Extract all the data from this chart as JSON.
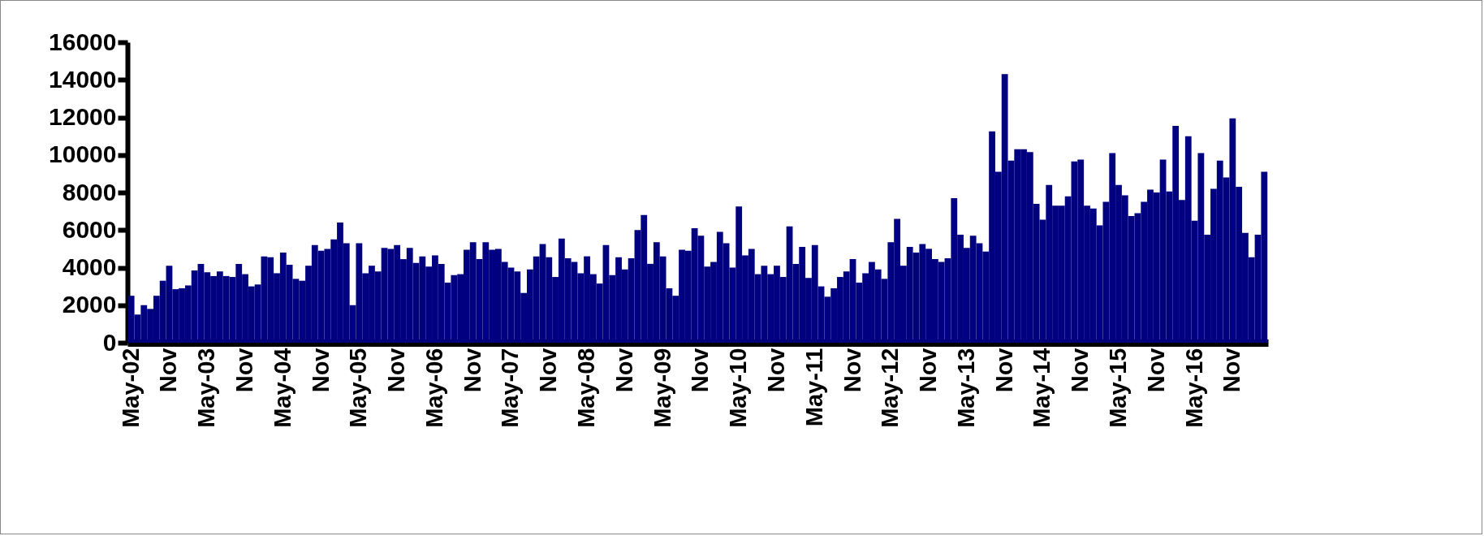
{
  "chart_data": {
    "type": "bar",
    "categories": [
      "May-02",
      null,
      null,
      null,
      null,
      null,
      "Nov",
      null,
      null,
      null,
      null,
      null,
      "May-03",
      null,
      null,
      null,
      null,
      null,
      "Nov",
      null,
      null,
      null,
      null,
      null,
      "May-04",
      null,
      null,
      null,
      null,
      null,
      "Nov",
      null,
      null,
      null,
      null,
      null,
      "May-05",
      null,
      null,
      null,
      null,
      null,
      "Nov",
      null,
      null,
      null,
      null,
      null,
      "May-06",
      null,
      null,
      null,
      null,
      null,
      "Nov",
      null,
      null,
      null,
      null,
      null,
      "May-07",
      null,
      null,
      null,
      null,
      null,
      "Nov",
      null,
      null,
      null,
      null,
      null,
      "May-08",
      null,
      null,
      null,
      null,
      null,
      "Nov",
      null,
      null,
      null,
      null,
      null,
      "May-09",
      null,
      null,
      null,
      null,
      null,
      "Nov",
      null,
      null,
      null,
      null,
      null,
      "May-10",
      null,
      null,
      null,
      null,
      null,
      "Nov",
      null,
      null,
      null,
      null,
      null,
      "May-11",
      null,
      null,
      null,
      null,
      null,
      "Nov",
      null,
      null,
      null,
      null,
      null,
      "May-12",
      null,
      null,
      null,
      null,
      null,
      "Nov",
      null,
      null,
      null,
      null,
      null,
      "May-13",
      null,
      null,
      null,
      null,
      null,
      "Nov",
      null,
      null,
      null,
      null,
      null,
      "May-14",
      null,
      null,
      null,
      null,
      null,
      "Nov",
      null,
      null,
      null,
      null,
      null,
      "May-15",
      null,
      null,
      null,
      null,
      null,
      "Nov",
      null,
      null,
      null,
      null,
      null,
      "May-16",
      null,
      null,
      null,
      null,
      null,
      "Nov",
      null,
      null,
      null,
      null,
      null
    ],
    "values": [
      2500,
      1500,
      2000,
      1800,
      2500,
      3300,
      4100,
      2850,
      2900,
      3050,
      3850,
      4200,
      3750,
      3550,
      3800,
      3550,
      3500,
      4200,
      3650,
      3000,
      3100,
      4600,
      4550,
      3700,
      4800,
      4150,
      3400,
      3300,
      4100,
      5200,
      4900,
      5000,
      5500,
      6400,
      5300,
      2000,
      5300,
      3700,
      4100,
      3800,
      5050,
      5000,
      5200,
      4450,
      5050,
      4250,
      4600,
      4050,
      4650,
      4200,
      3200,
      3600,
      3650,
      4950,
      5350,
      4450,
      5350,
      4950,
      5000,
      4300,
      4000,
      3800,
      2650,
      3900,
      4600,
      5250,
      4550,
      3500,
      5550,
      4500,
      4300,
      3700,
      4600,
      3650,
      3150,
      5200,
      3600,
      4550,
      3900,
      4500,
      6000,
      6800,
      4200,
      5350,
      4600,
      2900,
      2500,
      4950,
      4900,
      6100,
      5700,
      4050,
      4300,
      5900,
      5300,
      4000,
      7250,
      4650,
      5000,
      3650,
      4100,
      3650,
      4100,
      3500,
      6200,
      4200,
      5100,
      3450,
      5200,
      3000,
      2450,
      2900,
      3500,
      3800,
      4450,
      3200,
      3700,
      4300,
      3900,
      3400,
      5350,
      6600,
      4100,
      5100,
      4800,
      5250,
      5000,
      4450,
      4300,
      4500,
      7700,
      5750,
      5050,
      5700,
      5300,
      4850,
      11250,
      9100,
      14300,
      9700,
      10300,
      10300,
      10150,
      7400,
      6550,
      8400,
      7300,
      7300,
      7800,
      9650,
      9750,
      7300,
      7150,
      6250,
      7500,
      10100,
      8400,
      7850,
      6750,
      6900,
      7500,
      8150,
      8000,
      9750,
      8050,
      11550,
      7600,
      11000,
      6500,
      10100,
      5750,
      8200,
      9700,
      8800,
      11950,
      8300,
      5850,
      4550,
      5750,
      9100
    ],
    "color": "#000080",
    "ylim": [
      0,
      16000
    ],
    "yticks": [
      0,
      2000,
      4000,
      6000,
      8000,
      10000,
      12000,
      14000,
      16000
    ]
  }
}
